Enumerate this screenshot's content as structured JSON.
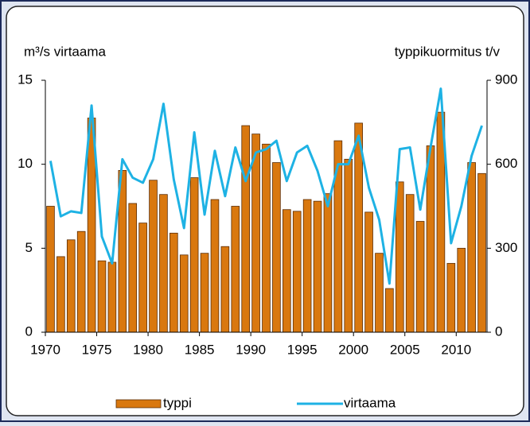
{
  "chart_data": {
    "type": "bar-line",
    "y_label": "m³/s virtaama",
    "y2_label": "typpikuormitus t/v",
    "x": [
      1970,
      1971,
      1972,
      1973,
      1974,
      1975,
      1976,
      1977,
      1978,
      1979,
      1980,
      1981,
      1982,
      1983,
      1984,
      1985,
      1986,
      1987,
      1988,
      1989,
      1990,
      1991,
      1992,
      1993,
      1994,
      1995,
      1996,
      1997,
      1998,
      1999,
      2000,
      2001,
      2002,
      2003,
      2004,
      2005,
      2006,
      2007,
      2008,
      2009,
      2010,
      2011,
      2012
    ],
    "xlim": [
      1970,
      2013
    ],
    "xticks": [
      1970,
      1975,
      1980,
      1985,
      1990,
      1995,
      2000,
      2005,
      2010
    ],
    "ylim": [
      0,
      15
    ],
    "yticks": [
      0,
      5,
      10,
      15
    ],
    "y2lim": [
      0,
      900
    ],
    "y2ticks": [
      0,
      300,
      600,
      900
    ],
    "legend": "bottom",
    "series": [
      {
        "name": "typpi",
        "type": "bar",
        "axis": "y2",
        "color": "#d9780f",
        "values": [
          450,
          270,
          330,
          360,
          765,
          255,
          250,
          578,
          460,
          390,
          543,
          492,
          354,
          276,
          552,
          282,
          474,
          306,
          450,
          738,
          708,
          672,
          606,
          438,
          432,
          474,
          468,
          495,
          684,
          618,
          747,
          429,
          282,
          156,
          537,
          492,
          396,
          666,
          786,
          246,
          300,
          606,
          567
        ]
      },
      {
        "name": "virtaama",
        "type": "line",
        "color": "#1eb2e4",
        "values": [
          10.2,
          6.9,
          7.2,
          7.1,
          13.5,
          5.7,
          4.1,
          10.3,
          9.2,
          8.9,
          10.3,
          13.6,
          9.1,
          6.2,
          11.9,
          7.0,
          10.8,
          8.1,
          11.0,
          9.0,
          10.7,
          10.9,
          11.4,
          9.0,
          10.7,
          11.1,
          9.6,
          7.5,
          10.0,
          10.0,
          11.7,
          8.6,
          6.7,
          2.9,
          10.9,
          11.0,
          7.3,
          11.0,
          14.5,
          5.3,
          7.5,
          10.5,
          12.3
        ]
      }
    ]
  }
}
